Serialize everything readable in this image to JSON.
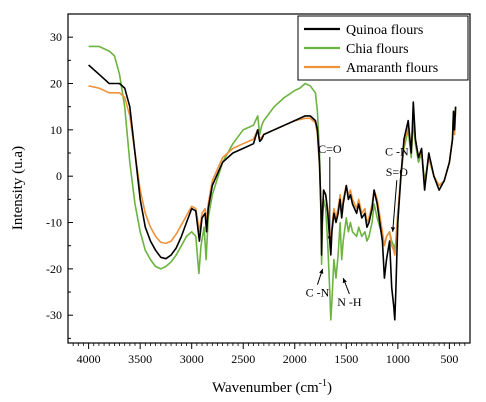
{
  "chart_data": {
    "type": "line",
    "title": "",
    "xlabel": "Wavenumber (cm",
    "xlabel_sup": "-1",
    "xlabel_close": ")",
    "ylabel": "Intensity (u.a)",
    "xlim": [
      4200,
      300
    ],
    "ylim": [
      -36,
      35
    ],
    "x_ticks": [
      4000,
      3500,
      3000,
      2500,
      2000,
      1500,
      1000,
      500
    ],
    "y_ticks": [
      30,
      20,
      10,
      0,
      -10,
      -20,
      -30
    ],
    "legend_position": "top-right",
    "series": [
      {
        "name": "Quinoa flours",
        "color": "#000000",
        "points": [
          [
            4000,
            24
          ],
          [
            3900,
            22
          ],
          [
            3800,
            20
          ],
          [
            3700,
            20
          ],
          [
            3650,
            19
          ],
          [
            3600,
            15
          ],
          [
            3550,
            5
          ],
          [
            3500,
            -5
          ],
          [
            3450,
            -11
          ],
          [
            3400,
            -14
          ],
          [
            3350,
            -16
          ],
          [
            3300,
            -17.5
          ],
          [
            3250,
            -17.8
          ],
          [
            3200,
            -17
          ],
          [
            3150,
            -15.5
          ],
          [
            3100,
            -13
          ],
          [
            3050,
            -10
          ],
          [
            3000,
            -7
          ],
          [
            2960,
            -7.5
          ],
          [
            2925,
            -14
          ],
          [
            2900,
            -9
          ],
          [
            2870,
            -8
          ],
          [
            2855,
            -12
          ],
          [
            2840,
            -7
          ],
          [
            2800,
            -2
          ],
          [
            2700,
            3
          ],
          [
            2600,
            5
          ],
          [
            2500,
            6
          ],
          [
            2400,
            7
          ],
          [
            2360,
            10
          ],
          [
            2340,
            7.5
          ],
          [
            2320,
            8
          ],
          [
            2300,
            9
          ],
          [
            2200,
            10
          ],
          [
            2100,
            11
          ],
          [
            2000,
            12
          ],
          [
            1900,
            13
          ],
          [
            1850,
            13
          ],
          [
            1800,
            12
          ],
          [
            1780,
            10
          ],
          [
            1760,
            3
          ],
          [
            1745,
            -8
          ],
          [
            1740,
            -17
          ],
          [
            1735,
            -10
          ],
          [
            1720,
            -3
          ],
          [
            1700,
            -4
          ],
          [
            1680,
            -8
          ],
          [
            1660,
            -14
          ],
          [
            1650,
            -17
          ],
          [
            1640,
            -12
          ],
          [
            1620,
            -8
          ],
          [
            1600,
            -10
          ],
          [
            1580,
            -8
          ],
          [
            1560,
            -5
          ],
          [
            1545,
            -9
          ],
          [
            1530,
            -6
          ],
          [
            1500,
            -2
          ],
          [
            1480,
            -5
          ],
          [
            1460,
            -4
          ],
          [
            1440,
            -6
          ],
          [
            1400,
            -8
          ],
          [
            1380,
            -6
          ],
          [
            1350,
            -9
          ],
          [
            1320,
            -8
          ],
          [
            1300,
            -11
          ],
          [
            1280,
            -10
          ],
          [
            1250,
            -7
          ],
          [
            1230,
            -3
          ],
          [
            1200,
            -6
          ],
          [
            1150,
            -14
          ],
          [
            1130,
            -22
          ],
          [
            1110,
            -18
          ],
          [
            1080,
            -14
          ],
          [
            1060,
            -24
          ],
          [
            1040,
            -28
          ],
          [
            1030,
            -31
          ],
          [
            1020,
            -25
          ],
          [
            1000,
            -10
          ],
          [
            970,
            0
          ],
          [
            940,
            8
          ],
          [
            900,
            12
          ],
          [
            870,
            5
          ],
          [
            860,
            10
          ],
          [
            850,
            16
          ],
          [
            830,
            8
          ],
          [
            800,
            4
          ],
          [
            770,
            6
          ],
          [
            740,
            -3
          ],
          [
            700,
            5
          ],
          [
            650,
            0
          ],
          [
            600,
            -3
          ],
          [
            550,
            -1
          ],
          [
            500,
            3
          ],
          [
            470,
            8
          ],
          [
            460,
            14
          ],
          [
            450,
            10
          ],
          [
            440,
            15
          ]
        ]
      },
      {
        "name": "Chia flours",
        "color": "#6db33f",
        "points": [
          [
            4000,
            28
          ],
          [
            3900,
            28
          ],
          [
            3800,
            27
          ],
          [
            3750,
            26
          ],
          [
            3700,
            22
          ],
          [
            3650,
            15
          ],
          [
            3600,
            3
          ],
          [
            3550,
            -6
          ],
          [
            3500,
            -12
          ],
          [
            3450,
            -16
          ],
          [
            3400,
            -18
          ],
          [
            3350,
            -19.5
          ],
          [
            3300,
            -20
          ],
          [
            3250,
            -19.5
          ],
          [
            3200,
            -18.5
          ],
          [
            3150,
            -17
          ],
          [
            3100,
            -15
          ],
          [
            3050,
            -13
          ],
          [
            3000,
            -12
          ],
          [
            2960,
            -13
          ],
          [
            2930,
            -21
          ],
          [
            2910,
            -15
          ],
          [
            2880,
            -11
          ],
          [
            2860,
            -18
          ],
          [
            2840,
            -9
          ],
          [
            2800,
            -4
          ],
          [
            2700,
            3
          ],
          [
            2600,
            7
          ],
          [
            2500,
            10
          ],
          [
            2400,
            11
          ],
          [
            2360,
            13
          ],
          [
            2340,
            9
          ],
          [
            2320,
            11
          ],
          [
            2300,
            12
          ],
          [
            2200,
            15
          ],
          [
            2100,
            17
          ],
          [
            2000,
            18.5
          ],
          [
            1950,
            19
          ],
          [
            1900,
            20
          ],
          [
            1850,
            19.5
          ],
          [
            1800,
            18
          ],
          [
            1780,
            14
          ],
          [
            1760,
            5
          ],
          [
            1745,
            -10
          ],
          [
            1740,
            -19
          ],
          [
            1735,
            -12
          ],
          [
            1720,
            -5
          ],
          [
            1700,
            -7
          ],
          [
            1680,
            -15
          ],
          [
            1660,
            -25
          ],
          [
            1650,
            -31
          ],
          [
            1640,
            -27
          ],
          [
            1620,
            -18
          ],
          [
            1600,
            -22
          ],
          [
            1580,
            -17
          ],
          [
            1560,
            -10
          ],
          [
            1545,
            -18
          ],
          [
            1530,
            -14
          ],
          [
            1500,
            -9
          ],
          [
            1480,
            -12
          ],
          [
            1460,
            -10
          ],
          [
            1440,
            -12
          ],
          [
            1400,
            -13
          ],
          [
            1380,
            -11
          ],
          [
            1350,
            -13
          ],
          [
            1320,
            -12
          ],
          [
            1300,
            -14
          ],
          [
            1280,
            -13
          ],
          [
            1250,
            -10
          ],
          [
            1230,
            -6
          ],
          [
            1200,
            -9
          ],
          [
            1150,
            -13
          ],
          [
            1130,
            -15
          ],
          [
            1110,
            -13
          ],
          [
            1080,
            -12
          ],
          [
            1060,
            -14
          ],
          [
            1040,
            -15
          ],
          [
            1030,
            -16
          ],
          [
            1020,
            -14
          ],
          [
            1000,
            -8
          ],
          [
            970,
            0
          ],
          [
            940,
            6
          ],
          [
            900,
            10
          ],
          [
            870,
            4
          ],
          [
            860,
            8
          ],
          [
            850,
            12
          ],
          [
            830,
            7
          ],
          [
            800,
            3
          ],
          [
            770,
            5
          ],
          [
            740,
            -1
          ],
          [
            700,
            4
          ],
          [
            650,
            0
          ],
          [
            600,
            -2
          ],
          [
            550,
            -1
          ],
          [
            500,
            3
          ],
          [
            470,
            8
          ],
          [
            460,
            14
          ],
          [
            450,
            9
          ],
          [
            440,
            15
          ]
        ]
      },
      {
        "name": "Amaranth flours",
        "color": "#f0923c",
        "points": [
          [
            4000,
            19.5
          ],
          [
            3900,
            19
          ],
          [
            3800,
            18
          ],
          [
            3750,
            18
          ],
          [
            3700,
            18
          ],
          [
            3650,
            17
          ],
          [
            3600,
            13
          ],
          [
            3550,
            5
          ],
          [
            3500,
            -3
          ],
          [
            3450,
            -8
          ],
          [
            3400,
            -11
          ],
          [
            3350,
            -13
          ],
          [
            3300,
            -14.3
          ],
          [
            3250,
            -14.5
          ],
          [
            3200,
            -14
          ],
          [
            3150,
            -12.5
          ],
          [
            3100,
            -10.5
          ],
          [
            3050,
            -8.5
          ],
          [
            3000,
            -6.5
          ],
          [
            2960,
            -7
          ],
          [
            2925,
            -12
          ],
          [
            2900,
            -8
          ],
          [
            2870,
            -7
          ],
          [
            2855,
            -10
          ],
          [
            2840,
            -6
          ],
          [
            2800,
            -1
          ],
          [
            2700,
            4
          ],
          [
            2600,
            6
          ],
          [
            2500,
            7
          ],
          [
            2400,
            8
          ],
          [
            2360,
            10
          ],
          [
            2340,
            8
          ],
          [
            2320,
            8.5
          ],
          [
            2300,
            9
          ],
          [
            2200,
            10
          ],
          [
            2100,
            11
          ],
          [
            2000,
            12
          ],
          [
            1900,
            12.5
          ],
          [
            1850,
            12.5
          ],
          [
            1800,
            11.5
          ],
          [
            1780,
            9
          ],
          [
            1760,
            2
          ],
          [
            1745,
            -7
          ],
          [
            1740,
            -15
          ],
          [
            1735,
            -9
          ],
          [
            1720,
            -3
          ],
          [
            1700,
            -4
          ],
          [
            1680,
            -7
          ],
          [
            1660,
            -12
          ],
          [
            1650,
            -14
          ],
          [
            1640,
            -11
          ],
          [
            1620,
            -7
          ],
          [
            1600,
            -9
          ],
          [
            1580,
            -7
          ],
          [
            1560,
            -4
          ],
          [
            1545,
            -8
          ],
          [
            1530,
            -5
          ],
          [
            1500,
            -2
          ],
          [
            1480,
            -4
          ],
          [
            1460,
            -3
          ],
          [
            1440,
            -5
          ],
          [
            1400,
            -7
          ],
          [
            1380,
            -5
          ],
          [
            1350,
            -8
          ],
          [
            1320,
            -7
          ],
          [
            1300,
            -10
          ],
          [
            1280,
            -9
          ],
          [
            1250,
            -6
          ],
          [
            1230,
            -3
          ],
          [
            1200,
            -5
          ],
          [
            1150,
            -12
          ],
          [
            1130,
            -15
          ],
          [
            1110,
            -13
          ],
          [
            1080,
            -12
          ],
          [
            1060,
            -15
          ],
          [
            1040,
            -16
          ],
          [
            1030,
            -17
          ],
          [
            1020,
            -15
          ],
          [
            1000,
            -8
          ],
          [
            970,
            0
          ],
          [
            940,
            7
          ],
          [
            900,
            11
          ],
          [
            870,
            5
          ],
          [
            860,
            9
          ],
          [
            850,
            14
          ],
          [
            830,
            8
          ],
          [
            800,
            4
          ],
          [
            770,
            5
          ],
          [
            740,
            -2
          ],
          [
            700,
            4
          ],
          [
            650,
            0
          ],
          [
            600,
            -2
          ],
          [
            550,
            -1
          ],
          [
            500,
            3
          ],
          [
            470,
            8
          ],
          [
            460,
            13
          ],
          [
            450,
            9
          ],
          [
            440,
            14
          ]
        ]
      }
    ],
    "annotations": [
      {
        "text": "C=O",
        "x": 1660,
        "y": 5,
        "arrow_to": [
          1660,
          -14
        ]
      },
      {
        "text": "C -N",
        "x": 1010,
        "y": 4.5,
        "arrow_to": null
      },
      {
        "text": "S=O",
        "x": 1010,
        "y": 0,
        "arrow_to": [
          1050,
          -12
        ]
      },
      {
        "text": "C -N",
        "x": 1780,
        "y": -26,
        "arrow_to": [
          1730,
          -20
        ]
      },
      {
        "text": "N -H",
        "x": 1470,
        "y": -28,
        "arrow_to": [
          1530,
          -22
        ]
      }
    ]
  }
}
